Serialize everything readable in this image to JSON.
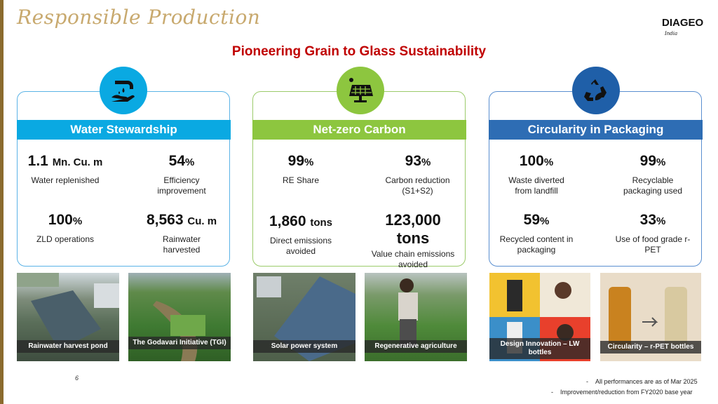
{
  "header": {
    "title": "Responsible Production",
    "logo": "DIAGEO",
    "logo_sub": "India"
  },
  "main_title": "Pioneering Grain to Glass Sustainability",
  "colors": {
    "water": "#0AA9E2",
    "carbon": "#8DC63F",
    "circularity": "#2E6DB4",
    "title_red": "#C00000",
    "header_gold": "#C8A96E"
  },
  "icons": {
    "water": "water-tap-hand-icon",
    "carbon": "solar-panel-icon",
    "circularity": "recycle-leaf-icon"
  },
  "panels": {
    "water": {
      "title": "Water Stewardship",
      "metrics": [
        {
          "value": "1.1",
          "unit": "Mn. Cu. m",
          "label": "Water replenished"
        },
        {
          "value": "54",
          "unit": "%",
          "label": "Efficiency improvement"
        },
        {
          "value": "100",
          "unit": "%",
          "label": "ZLD operations"
        },
        {
          "value": "8,563",
          "unit": "Cu. m",
          "label": "Rainwater harvested"
        }
      ]
    },
    "carbon": {
      "title": "Net-zero Carbon",
      "metrics": [
        {
          "value": "99",
          "unit": "%",
          "label": "RE Share"
        },
        {
          "value": "93",
          "unit": "%",
          "label": "Carbon reduction (S1+S2)"
        },
        {
          "value": "1,860",
          "unit": "tons",
          "label": "Direct emissions avoided"
        },
        {
          "value": "123,000",
          "unit": "tons",
          "label": "Value chain emissions avoided"
        }
      ]
    },
    "circularity": {
      "title": "Circularity in Packaging",
      "metrics": [
        {
          "value": "100",
          "unit": "%",
          "label": "Waste diverted from landfill"
        },
        {
          "value": "99",
          "unit": "%",
          "label": "Recyclable packaging used"
        },
        {
          "value": "59",
          "unit": "%",
          "label": "Recycled content in packaging"
        },
        {
          "value": "33",
          "unit": "%",
          "label": "Use of food grade r-PET"
        }
      ]
    }
  },
  "photos": [
    {
      "caption": "Rainwater harvest pond"
    },
    {
      "caption": "The Godavari Initiative (TGI)"
    },
    {
      "caption": "Solar power system"
    },
    {
      "caption": "Regenerative agriculture"
    },
    {
      "caption": "Design Innovation – LW bottles"
    },
    {
      "caption": "Circularity – r-PET bottles"
    }
  ],
  "footer": {
    "page_number": "6",
    "notes": [
      "All performances are as of Mar 2025",
      "Improvement/reduction from FY2020 base year"
    ]
  }
}
